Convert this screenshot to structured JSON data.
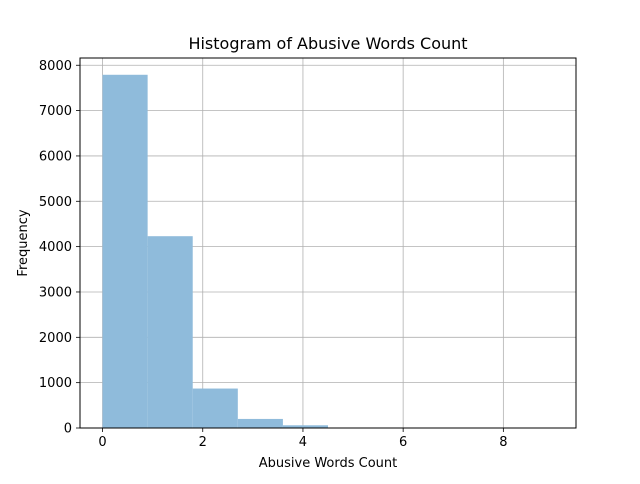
{
  "chart_data": {
    "type": "bar",
    "title": "Histogram of Abusive Words Count",
    "xlabel": "Abusive Words Count",
    "ylabel": "Frequency",
    "bins": [
      {
        "x0": 0.0,
        "x1": 0.9,
        "value": 7790
      },
      {
        "x0": 0.9,
        "x1": 1.8,
        "value": 4230
      },
      {
        "x0": 1.8,
        "x1": 2.7,
        "value": 870
      },
      {
        "x0": 2.7,
        "x1": 3.6,
        "value": 200
      },
      {
        "x0": 3.6,
        "x1": 4.5,
        "value": 60
      },
      {
        "x0": 4.5,
        "x1": 5.4,
        "value": 0
      },
      {
        "x0": 5.4,
        "x1": 6.3,
        "value": 0
      },
      {
        "x0": 6.3,
        "x1": 7.2,
        "value": 0
      },
      {
        "x0": 7.2,
        "x1": 8.1,
        "value": 0
      },
      {
        "x0": 8.1,
        "x1": 9.0,
        "value": 0
      }
    ],
    "xlim": [
      -0.45,
      9.45
    ],
    "ylim": [
      0,
      8160
    ],
    "xticks": [
      0,
      2,
      4,
      6,
      8
    ],
    "xtick_labels": [
      "0",
      "2",
      "4",
      "6",
      "8"
    ],
    "yticks": [
      0,
      1000,
      2000,
      3000,
      4000,
      5000,
      6000,
      7000,
      8000
    ],
    "ytick_labels": [
      "0",
      "1000",
      "2000",
      "3000",
      "4000",
      "5000",
      "6000",
      "7000",
      "8000"
    ],
    "grid": true,
    "bar_color": "#8fbbdb",
    "grid_color": "#b0b0b0"
  }
}
